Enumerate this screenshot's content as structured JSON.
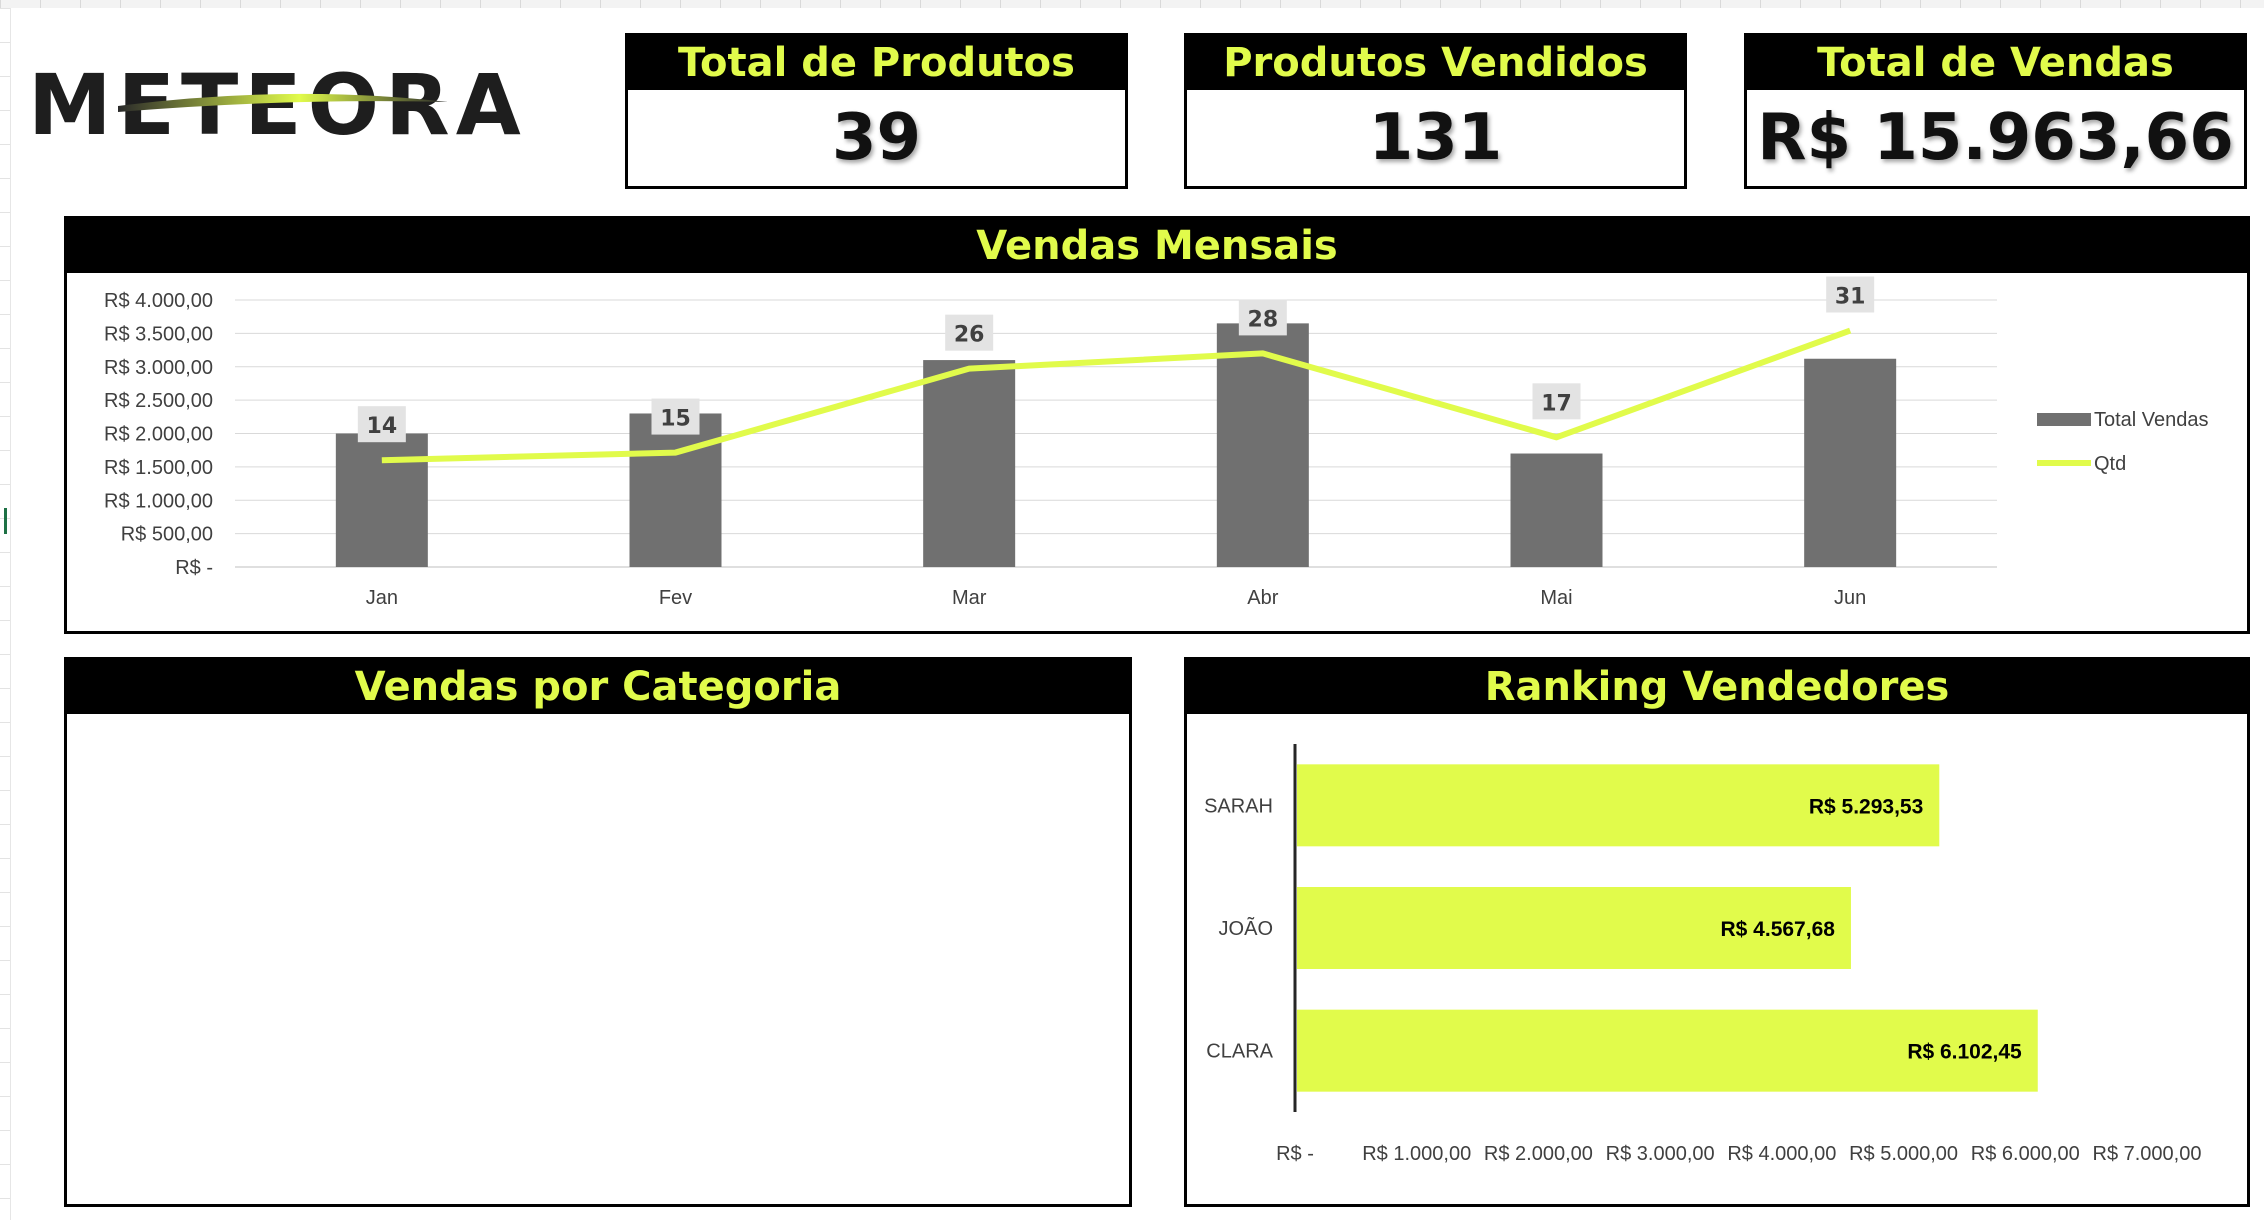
{
  "logo": {
    "text": "METEORA"
  },
  "kpis": [
    {
      "title": "Total de Produtos",
      "value": "39"
    },
    {
      "title": "Produtos Vendidos",
      "value": "131"
    },
    {
      "title": "Total de Vendas",
      "value": "R$  15.963,66"
    }
  ],
  "panels": {
    "monthly": {
      "title": "Vendas Mensais"
    },
    "category": {
      "title": "Vendas por Categoria"
    },
    "ranking": {
      "title": "Ranking Vendedores"
    }
  },
  "colors": {
    "accent": "#e1fb4b",
    "bar": "#707070",
    "header": "#000000"
  },
  "chart_data": [
    {
      "type": "bar+line",
      "categories": [
        "Jan",
        "Fev",
        "Mar",
        "Abr",
        "Mai",
        "Jun"
      ],
      "series": [
        {
          "name": "Total Vendas",
          "type": "bar",
          "values": [
            2000,
            2300,
            3100,
            3650,
            1700,
            3120
          ]
        },
        {
          "name": "Qtd",
          "type": "line",
          "values": [
            14,
            15,
            26,
            28,
            17,
            31
          ]
        }
      ],
      "y_ticks": [
        "R$ 4.000,00",
        "R$ 3.500,00",
        "R$ 3.000,00",
        "R$ 2.500,00",
        "R$ 2.000,00",
        "R$ 1.500,00",
        "R$ 1.000,00",
        "R$ 500,00",
        "R$ -"
      ],
      "ylim": [
        0,
        4000
      ],
      "y2lim": [
        0,
        35
      ],
      "grid": true,
      "legend": "right"
    },
    {
      "type": "hbar",
      "categories": [
        "SARAH",
        "JOÃO",
        "CLARA"
      ],
      "values": [
        5293.53,
        4567.68,
        6102.45
      ],
      "value_labels": [
        "R$ 5.293,53",
        "R$ 4.567,68",
        "R$ 6.102,45"
      ],
      "x_ticks": [
        "R$ -",
        "R$ 1.000,00",
        "R$ 2.000,00",
        "R$ 3.000,00",
        "R$ 4.000,00",
        "R$ 5.000,00",
        "R$ 6.000,00",
        "R$ 7.000,00"
      ],
      "xlim": [
        0,
        7000
      ]
    }
  ]
}
